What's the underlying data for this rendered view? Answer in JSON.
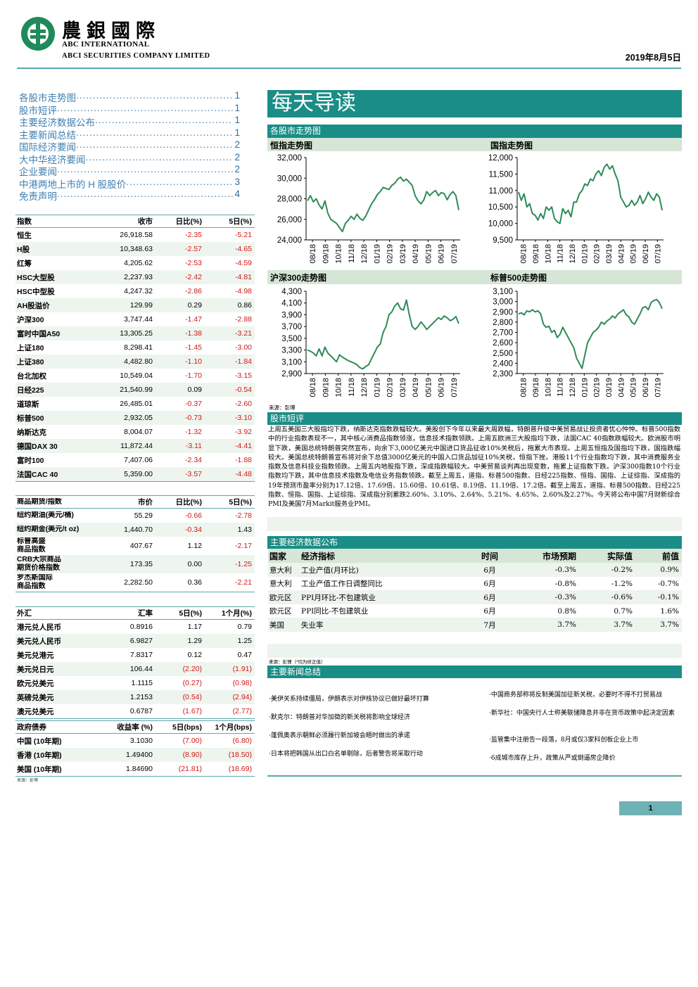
{
  "header": {
    "brand_cn": "農銀國際",
    "brand_en_1": "ABC INTERNATIONAL",
    "brand_en_2": "ABCI SECURITIES COMPANY LIMITED",
    "date": "2019年8月5日"
  },
  "toc": [
    {
      "label": "各股市走势图",
      "page": "1"
    },
    {
      "label": "股市短评",
      "page": "1"
    },
    {
      "label": "主要经济数据公布",
      "page": "1"
    },
    {
      "label": "主要新闻总结",
      "page": "1"
    },
    {
      "label": "国际经济要闻",
      "page": "2"
    },
    {
      "label": "大中华经济要闻",
      "page": "2"
    },
    {
      "label": "企业要闻",
      "page": "2"
    },
    {
      "label": "中港两地上市的 H 股股价",
      "page": "3"
    },
    {
      "label": "免责声明",
      "page": "4"
    }
  ],
  "index_table": {
    "headers": [
      "指数",
      "收市",
      "日比(%)",
      "5日(%)"
    ],
    "rows": [
      [
        "恒生",
        "26,918.58",
        "-2.35",
        "-5.21"
      ],
      [
        "H股",
        "10,348.63",
        "-2.57",
        "-4.65"
      ],
      [
        "红筹",
        "4,205.62",
        "-2.53",
        "-4.59"
      ],
      [
        "HSC大型股",
        "2,237.93",
        "-2.42",
        "-4.81"
      ],
      [
        "HSC中型股",
        "4,247.32",
        "-2.86",
        "-4.98"
      ],
      [
        "AH股溢价",
        "129.99",
        "0.29",
        "0.86"
      ],
      [
        "沪深300",
        "3,747.44",
        "-1.47",
        "-2.88"
      ],
      [
        "富时中国A50",
        "13,305.25",
        "-1.38",
        "-3.21"
      ],
      [
        "上证180",
        "8,298.41",
        "-1.45",
        "-3.00"
      ],
      [
        "上证380",
        "4,482.80",
        "-1.10",
        "-1.84"
      ],
      [
        "台北加权",
        "10,549.04",
        "-1.70",
        "-3.15"
      ],
      [
        "日经225",
        "21,540.99",
        "0.09",
        "-0.54"
      ],
      [
        "道琼斯",
        "26,485.01",
        "-0.37",
        "-2.60"
      ],
      [
        "标普500",
        "2,932.05",
        "-0.73",
        "-3.10"
      ],
      [
        "纳斯达克",
        "8,004.07",
        "-1.32",
        "-3.92"
      ],
      [
        "德国DAX 30",
        "11,872.44",
        "-3.11",
        "-4.41"
      ],
      [
        "富时100",
        "7,407.06",
        "-2.34",
        "-1.88"
      ],
      [
        "法国CAC 40",
        "5,359.00",
        "-3.57",
        "-4.48"
      ]
    ]
  },
  "commodity_table": {
    "headers": [
      "商品期货/指数",
      "市价",
      "日比(%)",
      "5日(%)"
    ],
    "rows": [
      [
        "纽约期油(美元/桶)",
        "55.29",
        "-0.66",
        "-2.78"
      ],
      [
        "纽约期金(美元/t oz)",
        "1,440.70",
        "-0.34",
        "1.43"
      ],
      [
        "标普高盛\n商品指数",
        "407.67",
        "1.12",
        "-2.17"
      ],
      [
        "CRB大宗商品\n期货价格指数",
        "173.35",
        "0.00",
        "-1.25"
      ],
      [
        "罗杰斯国际\n商品指数",
        "2,282.50",
        "0.36",
        "-2.21"
      ]
    ]
  },
  "fx_table": {
    "headers": [
      "外汇",
      "汇率",
      "5日(%)",
      "1个月(%)"
    ],
    "rows": [
      [
        "港元兑人民币",
        "0.8916",
        "1.17",
        "0.79"
      ],
      [
        "美元兑人民币",
        "6.9827",
        "1.29",
        "1.25"
      ],
      [
        "美元兑港元",
        "7.8317",
        "0.12",
        "0.47"
      ],
      [
        "美元兑日元",
        "106.44",
        "(2.20)",
        "(1.91)"
      ],
      [
        "欧元兑美元",
        "1.1115",
        "(0.27)",
        "(0.98)"
      ],
      [
        "英磅兑美元",
        "1.2153",
        "(0.54)",
        "(2.94)"
      ],
      [
        "澳元兑美元",
        "0.6787",
        "(1.67)",
        "(2.77)"
      ]
    ]
  },
  "bond_table": {
    "headers": [
      "政府债券",
      "收益率 (%)",
      "5日(bps)",
      "1个月(bps)"
    ],
    "rows": [
      [
        "中国 (10年期)",
        "3.1030",
        "(7.00)",
        "(6.80)"
      ],
      [
        "香港 (10年期)",
        "1.49400",
        "(8.90)",
        "(18.50)"
      ],
      [
        "美国 (10年期)",
        "1.84690",
        "(21.81)",
        "(18.69)"
      ]
    ],
    "source": "来源：彭博"
  },
  "main_title": "每天导读",
  "charts_section": {
    "title": "各股市走势图",
    "source": "来源：彭博",
    "x_ticks": [
      "08/18",
      "09/18",
      "10/18",
      "11/18",
      "12/18",
      "01/19",
      "02/19",
      "03/19",
      "04/19",
      "05/19",
      "06/19",
      "07/19"
    ]
  },
  "chart_data": [
    {
      "type": "line",
      "title": "恒指走势图",
      "ylim": [
        24000,
        32000
      ],
      "yticks": [
        "32,000",
        "30,000",
        "28,000",
        "26,000",
        "24,000"
      ],
      "values": [
        27800,
        28300,
        27700,
        28000,
        27400,
        27000,
        27800,
        26600,
        26000,
        25800,
        25600,
        25200,
        24800,
        25600,
        25900,
        26300,
        26000,
        26500,
        26100,
        25900,
        26300,
        26900,
        27500,
        27900,
        28400,
        28700,
        29100,
        29000,
        28900,
        29300,
        29500,
        29900,
        30100,
        29700,
        29900,
        29600,
        29300,
        28300,
        27800,
        27500,
        27900,
        28700,
        28300,
        28600,
        28800,
        28300,
        28600,
        28500,
        27900,
        28400,
        28700,
        28300,
        26900
      ]
    },
    {
      "type": "line",
      "title": "国指走势图",
      "ylim": [
        9500,
        12000
      ],
      "yticks": [
        "12,000",
        "11,500",
        "11,000",
        "10,500",
        "10,000",
        "9,500"
      ],
      "values": [
        10950,
        10700,
        10900,
        10500,
        10600,
        10300,
        10250,
        10100,
        10300,
        10150,
        10500,
        10400,
        10500,
        10150,
        10050,
        10000,
        10450,
        10300,
        10400,
        10200,
        10650,
        10650,
        10900,
        11000,
        11200,
        11150,
        11350,
        11300,
        11500,
        11600,
        11450,
        11700,
        11800,
        11650,
        11750,
        11500,
        11300,
        10800,
        10650,
        10500,
        10550,
        10700,
        10550,
        10650,
        10850,
        10600,
        10750,
        10950,
        10800,
        10700,
        10900,
        10800,
        10400
      ]
    },
    {
      "type": "line",
      "title": "沪深300走势图",
      "ylim": [
        2900,
        4300
      ],
      "yticks": [
        "4,300",
        "4,100",
        "3,900",
        "3,700",
        "3,500",
        "3,300",
        "3,100",
        "2,900"
      ],
      "values": [
        3300,
        3280,
        3250,
        3200,
        3320,
        3200,
        3350,
        3250,
        3200,
        3150,
        3100,
        3220,
        3180,
        3150,
        3120,
        3100,
        3080,
        3050,
        3000,
        2980,
        3020,
        3050,
        3150,
        3250,
        3350,
        3400,
        3600,
        3700,
        3900,
        3950,
        4050,
        4100,
        4000,
        3980,
        4150,
        3900,
        3700,
        3650,
        3700,
        3780,
        3720,
        3650,
        3700,
        3750,
        3800,
        3850,
        3820,
        3880,
        3850,
        3800,
        3820,
        3870,
        3750
      ]
    },
    {
      "type": "line",
      "title": "标普500走势图",
      "ylim": [
        2300,
        3100
      ],
      "yticks": [
        "3,100",
        "3,000",
        "2,900",
        "2,800",
        "2,700",
        "2,600",
        "2,500",
        "2,400",
        "2,300"
      ],
      "values": [
        2880,
        2890,
        2870,
        2910,
        2900,
        2920,
        2900,
        2910,
        2880,
        2780,
        2750,
        2760,
        2700,
        2720,
        2650,
        2680,
        2750,
        2700,
        2650,
        2600,
        2550,
        2450,
        2400,
        2350,
        2480,
        2600,
        2650,
        2700,
        2720,
        2750,
        2800,
        2780,
        2810,
        2830,
        2860,
        2840,
        2880,
        2900,
        2920,
        2870,
        2850,
        2800,
        2780,
        2830,
        2880,
        2940,
        2950,
        2920,
        2990,
        3010,
        3020,
        2990,
        2930
      ]
    }
  ],
  "commentary": {
    "title": "股市短评",
    "text": "上周五美国三大股指均下跌，纳斯达克指数跌幅较大。美股创下今年以来最大周跌幅，特朗普升级中美贸易战让投资者忧心忡忡。标普500指数中的行业指数表现不一，其中核心消费品指数领涨，信息技术指数领跌。上周五欧洲三大股指均下跌，法国CAC 40指数跌幅较大。欧洲股市明显下跌，美国总统特朗普突然宣布，向余下3,000亿美元中国进口货品征收10%关税后，拖累大市表现。上周五恒指及国指均下跌，国指跌幅较大。美国总统特朗普宣布将对余下总值3000亿美元的中国入口货品加征10%关税，恒指下挫。港股11个行业指数均下跌，其中消费服务业指数及信息科技业指数领跌。上周五内地股指下跌，深成指跌幅较大。中美贸易谈判再出现变数，拖累上证指数下跌。沪深300指数10个行业指数均下跌，其中信息技术指数及电信业务指数领跌。截至上周五，道指、标普500指数、日经225指数、恒指、国指、上证综指、深成指的19年预测市盈率分别为17.12倍、17.69倍、15.60倍、10.61倍、8.19倍、11.19倍、17.2倍。截至上周五，道指、标普500指数、日经225指数、恒指、国指、上证综指、深成指分别累跌2.60%、3.10%、2.64%、5.21%、4.65%、2.60%及2.27%。今天将公布中国7月财新综合PMI及美国7月Markit服务业PMI。"
  },
  "econ": {
    "title": "主要经济数据公布",
    "headers": [
      "国家",
      "经济指标",
      "时间",
      "市场预期",
      "实际值",
      "前值"
    ],
    "rows": [
      [
        "意大利",
        "工业产值(月环比)",
        "6月",
        "-0.3%",
        "-0.2%",
        "0.9%"
      ],
      [
        "意大利",
        "工业产值工作日调整同比",
        "6月",
        "-0.8%",
        "-1.2%",
        "-0.7%"
      ],
      [
        "欧元区",
        "PPI月环比-不包建筑业",
        "6月",
        "-0.3%",
        "-0.6%",
        "-0.1%"
      ],
      [
        "欧元区",
        "PPI同比-不包建筑业",
        "6月",
        "0.8%",
        "0.7%",
        "1.6%"
      ],
      [
        "美国",
        "失业率",
        "7月",
        "3.7%",
        "3.7%",
        "3.7%"
      ]
    ],
    "source": "来源：彭博（*均为修正值）"
  },
  "news": {
    "title": "主要新闻总结",
    "left": [
      "·美伊关系持续僵局，伊朗表示对伊核协议已做好最坏打算",
      "·默克尔：特朗普对华加徵的新关税将影响全球经济",
      "·蓬佩奥表示朝鲜必须履行新加坡会晤时做出的承诺",
      "·日本将把韩国从出口白名单剔除，后者警告将采取行动"
    ],
    "right": [
      "·中国商务部称将反制美国加征新关税，必要时不得不打贸易战",
      "·新华社：中国央行人士称美联储降息并非在货币政策中起决定因素",
      "·监管集中注册告一段落，8月或仅3家科创板企业上市",
      "·6成城市库存上升，政策从严或倒逼房企降价"
    ]
  },
  "footer": {
    "page_number": "1"
  },
  "colors": {
    "teal": "#1a8d86",
    "green_line": "#2e8b57",
    "negative": "#d01818"
  }
}
